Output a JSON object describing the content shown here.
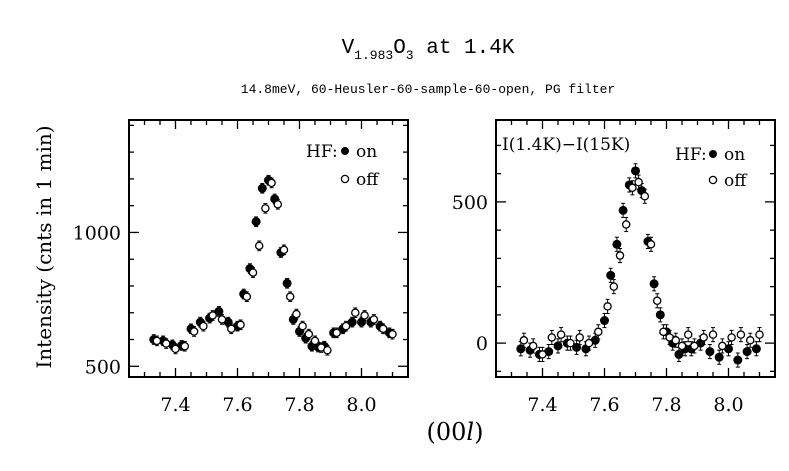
{
  "chart_data": {
    "type": "scatter",
    "title": "V1.983O3 at 1.4K",
    "title_main": "V",
    "title_sub1": "1.983",
    "title_mid": "O",
    "title_sub2": "3",
    "title_tail": " at 1.4K",
    "subtitle": "14.8meV, 60-Heusler-60-sample-60-open, PG filter",
    "ylabel": "Intensity (cnts in 1 min)",
    "xlabel": "(00l)",
    "xlabel_text": "(00",
    "xlabel_var": "l",
    "xlabel_close": ")",
    "panels": [
      {
        "xlim": [
          7.25,
          8.15
        ],
        "ylim": [
          460,
          1420
        ],
        "xticks": [
          7.4,
          7.6,
          7.8,
          8.0
        ],
        "xticklabels": [
          "7.4",
          "7.6",
          "7.8",
          "8.0"
        ],
        "yticks": [
          500,
          1000
        ],
        "yticklabels": [
          "500",
          "1000"
        ],
        "legend": {
          "title": "HF:",
          "on": "on",
          "off": "off",
          "position": "top-right"
        },
        "annotation": "",
        "series": [
          {
            "name": "on",
            "marker": "filled",
            "x": [
              7.33,
              7.36,
              7.39,
              7.42,
              7.45,
              7.48,
              7.51,
              7.54,
              7.57,
              7.6,
              7.62,
              7.64,
              7.66,
              7.68,
              7.7,
              7.72,
              7.74,
              7.76,
              7.78,
              7.8,
              7.82,
              7.84,
              7.86,
              7.88,
              7.91,
              7.94,
              7.97,
              8.0,
              8.03,
              8.06,
              8.09
            ],
            "y": [
              600,
              595,
              580,
              578,
              640,
              665,
              680,
              705,
              665,
              650,
              770,
              865,
              1040,
              1165,
              1195,
              1125,
              925,
              810,
              675,
              630,
              605,
              575,
              572,
              575,
              625,
              640,
              665,
              665,
              665,
              650,
              625
            ]
          },
          {
            "name": "off",
            "marker": "open",
            "x": [
              7.34,
              7.37,
              7.4,
              7.43,
              7.46,
              7.49,
              7.52,
              7.55,
              7.58,
              7.61,
              7.63,
              7.65,
              7.67,
              7.69,
              7.71,
              7.73,
              7.75,
              7.77,
              7.79,
              7.81,
              7.83,
              7.85,
              7.87,
              7.89,
              7.92,
              7.95,
              7.98,
              8.01,
              8.04,
              8.07,
              8.1
            ],
            "y": [
              595,
              585,
              565,
              575,
              630,
              650,
              690,
              675,
              640,
              655,
              760,
              850,
              950,
              1090,
              1185,
              1105,
              935,
              760,
              695,
              650,
              620,
              595,
              570,
              560,
              625,
              650,
              700,
              690,
              675,
              640,
              620
            ]
          }
        ]
      },
      {
        "xlim": [
          7.25,
          8.15
        ],
        "ylim": [
          -120,
          790
        ],
        "xticks": [
          7.4,
          7.6,
          7.8,
          8.0
        ],
        "xticklabels": [
          "7.4",
          "7.6",
          "7.8",
          "8.0"
        ],
        "yticks": [
          0,
          500
        ],
        "yticklabels": [
          "0",
          "500"
        ],
        "legend": {
          "title": "HF:",
          "on": "on",
          "off": "off",
          "position": "top-right"
        },
        "annotation": "I(1.4K)−I(15K)",
        "series": [
          {
            "name": "on",
            "marker": "filled",
            "x": [
              7.33,
              7.36,
              7.39,
              7.42,
              7.45,
              7.48,
              7.51,
              7.54,
              7.57,
              7.6,
              7.62,
              7.64,
              7.66,
              7.68,
              7.7,
              7.72,
              7.74,
              7.76,
              7.78,
              7.8,
              7.82,
              7.84,
              7.86,
              7.88,
              7.91,
              7.94,
              7.97,
              8.0,
              8.03,
              8.06,
              8.09
            ],
            "y": [
              -20,
              -25,
              -40,
              -30,
              -10,
              0,
              -15,
              -20,
              10,
              80,
              240,
              350,
              470,
              560,
              610,
              540,
              360,
              210,
              100,
              40,
              0,
              -40,
              -20,
              -20,
              0,
              -30,
              -50,
              -20,
              -60,
              -30,
              -20
            ]
          },
          {
            "name": "off",
            "marker": "open",
            "x": [
              7.34,
              7.37,
              7.4,
              7.43,
              7.46,
              7.49,
              7.52,
              7.55,
              7.58,
              7.61,
              7.63,
              7.65,
              7.67,
              7.69,
              7.71,
              7.73,
              7.75,
              7.77,
              7.79,
              7.81,
              7.83,
              7.85,
              7.87,
              7.89,
              7.92,
              7.95,
              7.98,
              8.01,
              8.04,
              8.07,
              8.1
            ],
            "y": [
              10,
              -10,
              -40,
              20,
              30,
              0,
              20,
              0,
              40,
              130,
              200,
              310,
              420,
              550,
              570,
              520,
              350,
              150,
              40,
              20,
              10,
              -10,
              30,
              -10,
              20,
              30,
              -10,
              20,
              30,
              10,
              30
            ]
          }
        ]
      }
    ]
  }
}
